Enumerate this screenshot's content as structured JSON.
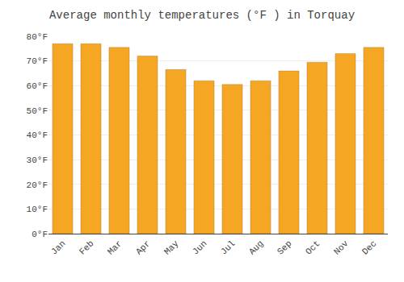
{
  "chart_data": {
    "type": "bar",
    "title": "Average monthly temperatures (°F ) in Torquay",
    "categories": [
      "Jan",
      "Feb",
      "Mar",
      "Apr",
      "May",
      "Jun",
      "Jul",
      "Aug",
      "Sep",
      "Oct",
      "Nov",
      "Dec"
    ],
    "values": [
      77,
      77,
      75.5,
      72,
      66.5,
      62,
      60.5,
      62,
      66,
      69.5,
      73,
      75.5
    ],
    "color": "#F5A623",
    "ylim": [
      0,
      80
    ],
    "yticks": [
      {
        "value": 0,
        "label": "0°F"
      },
      {
        "value": 10,
        "label": "10°F"
      },
      {
        "value": 20,
        "label": "20°F"
      },
      {
        "value": 30,
        "label": "30°F"
      },
      {
        "value": 40,
        "label": "40°F"
      },
      {
        "value": 50,
        "label": "50°F"
      },
      {
        "value": 60,
        "label": "60°F"
      },
      {
        "value": 70,
        "label": "70°F"
      },
      {
        "value": 80,
        "label": "80°F"
      }
    ],
    "grid": true
  }
}
